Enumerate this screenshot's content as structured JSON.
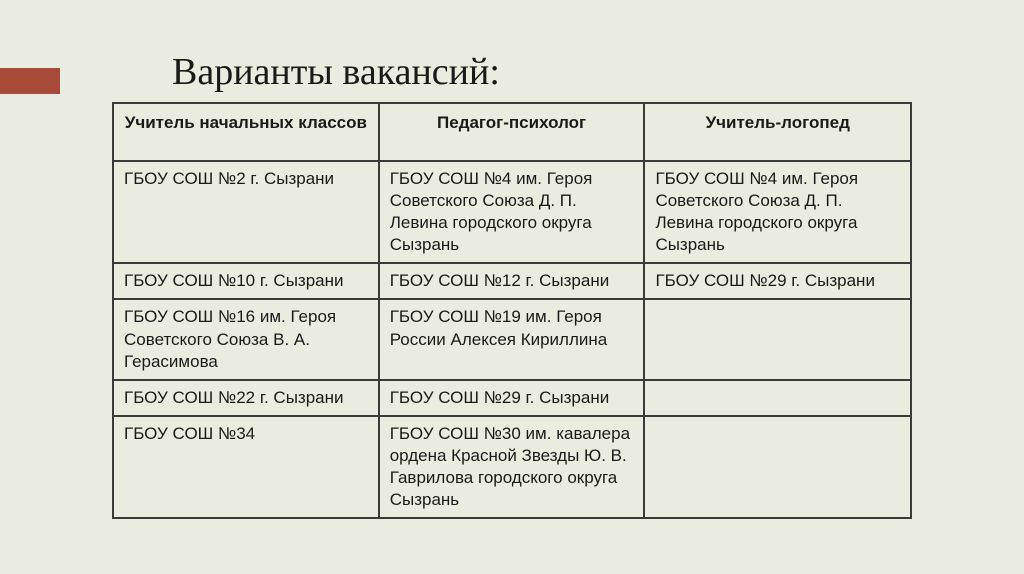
{
  "title": "Варианты вакансий:",
  "accent_color": "#a84a3a",
  "background_color": "#eaece0",
  "border_color": "#3a3a3a",
  "text_color": "#1a1a1a",
  "title_fontsize": 38,
  "cell_fontsize": 17,
  "table": {
    "columns": [
      "Учитель начальных классов",
      "Педагог-психолог",
      "Учитель-логопед"
    ],
    "rows": [
      [
        "ГБОУ СОШ №2 г. Сызрани",
        "ГБОУ СОШ №4 им. Героя Советского Союза Д. П. Левина городского округа Сызрань",
        "ГБОУ СОШ №4 им. Героя Советского Союза Д. П. Левина городского округа Сызрань"
      ],
      [
        "ГБОУ СОШ №10 г. Сызрани",
        "ГБОУ СОШ №12 г. Сызрани",
        "ГБОУ СОШ №29 г. Сызрани"
      ],
      [
        "ГБОУ СОШ №16 им. Героя Советского Союза В. А. Герасимова",
        "ГБОУ СОШ №19 им. Героя России Алексея Кириллина",
        ""
      ],
      [
        "ГБОУ СОШ №22 г. Сызрани",
        "ГБОУ СОШ №29 г. Сызрани",
        ""
      ],
      [
        "ГБОУ СОШ №34",
        "ГБОУ СОШ №30 им. кавалера ордена Красной Звезды Ю. В. Гаврилова городского округа Сызрань",
        ""
      ]
    ]
  }
}
